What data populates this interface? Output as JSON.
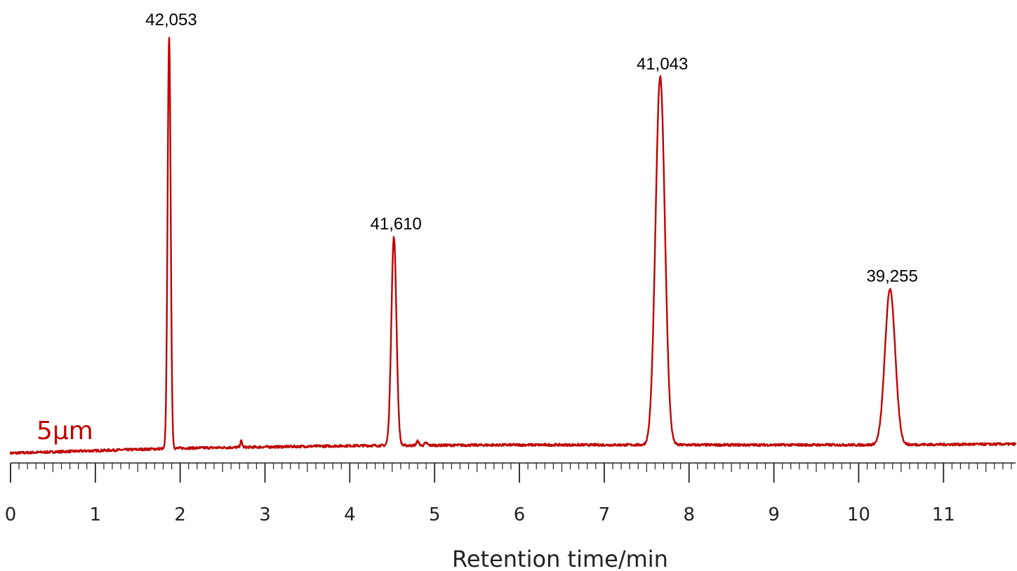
{
  "chart_data": {
    "type": "line",
    "xlabel": "Retention time/min",
    "ylabel": "",
    "xlim": [
      0,
      11.85
    ],
    "x_ticks": [
      0,
      1,
      2,
      3,
      4,
      5,
      6,
      7,
      8,
      9,
      10,
      11
    ],
    "minor_ticks_per_unit": 10,
    "grid": false,
    "series": [
      {
        "name": "5μm",
        "color": "#c00000"
      }
    ],
    "baseline": [
      [
        0,
        0.0
      ],
      [
        2.0,
        0.012
      ],
      [
        4.0,
        0.018
      ],
      [
        6.0,
        0.02
      ],
      [
        8.0,
        0.02
      ],
      [
        10.0,
        0.02
      ],
      [
        11.85,
        0.022
      ]
    ],
    "peaks": [
      {
        "time": 1.87,
        "height": 1.0,
        "width": 0.018,
        "label": "42,053"
      },
      {
        "time": 4.52,
        "height": 0.505,
        "width": 0.03,
        "label": "41,610"
      },
      {
        "time": 7.66,
        "height": 0.893,
        "width": 0.055,
        "label": "41,043"
      },
      {
        "time": 10.37,
        "height": 0.378,
        "width": 0.06,
        "label": "39,255"
      }
    ],
    "minor_peaks": [
      {
        "time": 2.72,
        "height": 0.015,
        "width": 0.012
      },
      {
        "time": 4.8,
        "height": 0.01,
        "width": 0.015
      },
      {
        "time": 4.9,
        "height": 0.006,
        "width": 0.015
      }
    ]
  }
}
